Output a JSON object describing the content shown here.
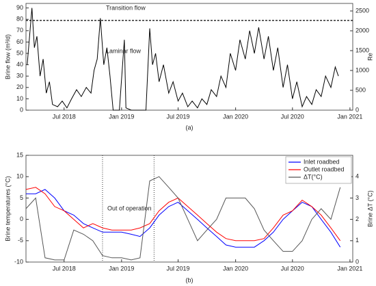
{
  "chart_data": [
    {
      "type": "line",
      "ylabel": "Brine flow (m³/d)",
      "y2label": "Re",
      "caption": "(a)",
      "xlim": [
        "2018-03-01",
        "2021-01-10"
      ],
      "xticks": [
        {
          "value": "2018-07-01",
          "label": "Jul 2018"
        },
        {
          "value": "2019-01-01",
          "label": "Jan 2019"
        },
        {
          "value": "2019-07-01",
          "label": "Jul 2019"
        },
        {
          "value": "2020-01-01",
          "label": "Jan 2020"
        },
        {
          "value": "2020-07-01",
          "label": "Jul 2020"
        },
        {
          "value": "2021-01-01",
          "label": "Jan 2021"
        }
      ],
      "ylim": [
        0,
        94
      ],
      "yticks": [
        0,
        10,
        20,
        30,
        40,
        50,
        60,
        70,
        80,
        90
      ],
      "y2lim": [
        0,
        2690
      ],
      "y2ticks": [
        0,
        500,
        1000,
        1500,
        2000,
        2500
      ],
      "hlines": [
        79
      ],
      "annotations": [
        "Transition flow",
        "Laminar flow"
      ],
      "x": [
        "2018-03-05",
        "2018-03-20",
        "2018-03-28",
        "2018-04-05",
        "2018-04-15",
        "2018-04-25",
        "2018-05-05",
        "2018-05-15",
        "2018-05-25",
        "2018-06-10",
        "2018-06-25",
        "2018-07-10",
        "2018-07-25",
        "2018-08-10",
        "2018-08-25",
        "2018-09-10",
        "2018-09-25",
        "2018-10-05",
        "2018-10-15",
        "2018-10-25",
        "2018-11-05",
        "2018-11-15",
        "2018-11-25",
        "2018-12-05",
        "2018-12-25",
        "2019-01-10",
        "2019-01-15",
        "2019-02-01",
        "2019-03-01",
        "2019-03-20",
        "2019-04-01",
        "2019-04-10",
        "2019-04-20",
        "2019-05-01",
        "2019-05-15",
        "2019-06-01",
        "2019-06-15",
        "2019-07-01",
        "2019-07-15",
        "2019-08-01",
        "2019-08-15",
        "2019-09-01",
        "2019-09-15",
        "2019-10-01",
        "2019-10-15",
        "2019-11-01",
        "2019-11-15",
        "2019-12-01",
        "2019-12-15",
        "2020-01-01",
        "2020-01-15",
        "2020-02-01",
        "2020-02-15",
        "2020-03-01",
        "2020-03-15",
        "2020-04-01",
        "2020-04-15",
        "2020-05-01",
        "2020-05-15",
        "2020-06-01",
        "2020-06-15",
        "2020-07-01",
        "2020-07-15",
        "2020-08-01",
        "2020-08-15",
        "2020-09-01",
        "2020-09-15",
        "2020-10-01",
        "2020-10-15",
        "2020-11-01",
        "2020-11-15",
        "2020-11-25"
      ],
      "series": [
        {
          "color": "#000000",
          "values": [
            40,
            90,
            55,
            65,
            30,
            45,
            15,
            25,
            5,
            3,
            8,
            2,
            10,
            18,
            12,
            20,
            15,
            35,
            45,
            81,
            40,
            55,
            30,
            0,
            0,
            62,
            2,
            0,
            0,
            0,
            72,
            40,
            50,
            25,
            40,
            15,
            25,
            8,
            15,
            3,
            8,
            2,
            10,
            5,
            18,
            12,
            30,
            20,
            50,
            35,
            62,
            45,
            70,
            50,
            73,
            45,
            65,
            35,
            55,
            20,
            40,
            10,
            25,
            3,
            12,
            5,
            18,
            12,
            30,
            20,
            38,
            30
          ]
        }
      ]
    },
    {
      "type": "line",
      "ylabel": "Brine temperatures (°C)",
      "y2label": "Brine ΔT (°C)",
      "caption": "(b)",
      "legend": "upper right",
      "xlim": [
        "2018-03-01",
        "2021-01-10"
      ],
      "xticks": [
        {
          "value": "2018-07-01",
          "label": "Jul 2018"
        },
        {
          "value": "2019-01-01",
          "label": "Jan 2019"
        },
        {
          "value": "2019-07-01",
          "label": "Jul 2019"
        },
        {
          "value": "2020-01-01",
          "label": "Jan 2020"
        },
        {
          "value": "2020-07-01",
          "label": "Jul 2020"
        },
        {
          "value": "2021-01-01",
          "label": "Jan 2021"
        }
      ],
      "ylim": [
        -10,
        15
      ],
      "yticks": [
        -10,
        -5,
        0,
        5,
        10,
        15
      ],
      "y2lim": [
        0,
        5
      ],
      "y2ticks": [
        0,
        1,
        2,
        3,
        4
      ],
      "vlines": [
        "2018-11-01",
        "2019-04-15"
      ],
      "annotations": [
        "Out of operation"
      ],
      "x": [
        "2018-03-01",
        "2018-04-01",
        "2018-05-01",
        "2018-06-01",
        "2018-07-01",
        "2018-08-01",
        "2018-09-01",
        "2018-10-01",
        "2018-11-01",
        "2018-12-01",
        "2019-01-01",
        "2019-02-01",
        "2019-03-01",
        "2019-04-01",
        "2019-05-01",
        "2019-06-01",
        "2019-07-01",
        "2019-08-01",
        "2019-09-01",
        "2019-10-01",
        "2019-11-01",
        "2019-12-01",
        "2020-01-01",
        "2020-02-01",
        "2020-03-01",
        "2020-04-01",
        "2020-05-01",
        "2020-06-01",
        "2020-07-01",
        "2020-08-01",
        "2020-09-01",
        "2020-10-01",
        "2020-11-01",
        "2020-12-01"
      ],
      "series": [
        {
          "name": "Inlet roadbed",
          "color": "#0000ff",
          "values": [
            6,
            6,
            7,
            5,
            2,
            1,
            -1,
            -2,
            -3,
            -3,
            -3,
            -3.5,
            -4,
            -2,
            1,
            3,
            4,
            2,
            0,
            -2,
            -4,
            -6,
            -6.5,
            -6.5,
            -6.5,
            -5,
            -3,
            0,
            2,
            4,
            3,
            0,
            -3,
            -6.5
          ]
        },
        {
          "name": "Outlet roadbed",
          "color": "#ff0000",
          "values": [
            7,
            7.5,
            6,
            3,
            2,
            0,
            -2,
            -1,
            -2,
            -2.5,
            -2.5,
            -2.5,
            -2,
            -1,
            2,
            4,
            5,
            3,
            1,
            -1,
            -3,
            -4.5,
            -5,
            -5,
            -5,
            -4.5,
            -2,
            1,
            2,
            4.5,
            3,
            1,
            -2,
            -5
          ]
        },
        {
          "name": "ΔT(°C)",
          "color": "#555555",
          "axis": "y2",
          "values": [
            2.5,
            3,
            0.2,
            0.1,
            0.1,
            1.5,
            1.3,
            1,
            0.3,
            0.2,
            0.2,
            0.1,
            0.2,
            3.8,
            4,
            3.5,
            3,
            2,
            1,
            1.5,
            2,
            3,
            3,
            3,
            2.5,
            1.5,
            1,
            0.5,
            0.5,
            1,
            2,
            2.5,
            2,
            3.5
          ]
        }
      ]
    }
  ]
}
